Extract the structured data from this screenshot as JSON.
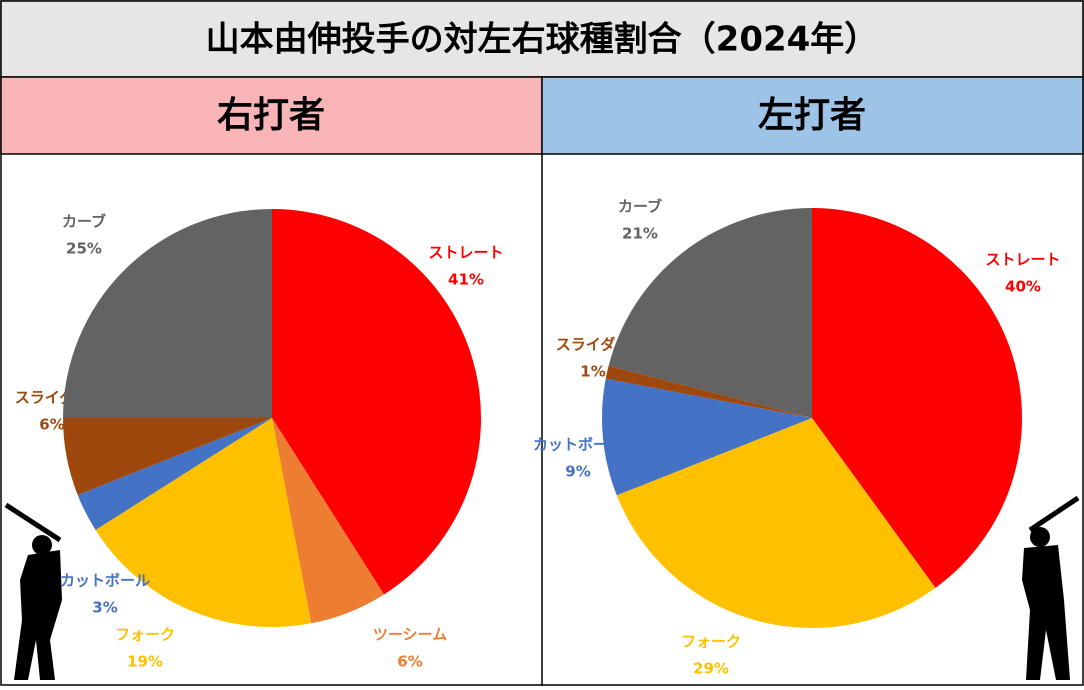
{
  "header": {
    "title": "山本由伸投手の対左右球種割合（2024年）"
  },
  "chart_data": [
    {
      "type": "pie",
      "title": "右打者",
      "categories": [
        "ストレート",
        "ツーシーム",
        "フォーク",
        "カットボール",
        "スライダー",
        "カーブ"
      ],
      "values": [
        41,
        6,
        19,
        3,
        6,
        25
      ],
      "value_labels": [
        "41%",
        "6%",
        "19%",
        "3%",
        "6%",
        "25%"
      ],
      "colors": [
        "#ff0000",
        "#ed7d31",
        "#ffc000",
        "#4472c4",
        "#9e480e",
        "#636363"
      ]
    },
    {
      "type": "pie",
      "title": "左打者",
      "categories": [
        "ストレート",
        "フォーク",
        "カットボール",
        "スライダー",
        "カーブ"
      ],
      "values": [
        40,
        29,
        9,
        1,
        21
      ],
      "value_labels": [
        "40%",
        "29%",
        "9%",
        "1%",
        "21%"
      ],
      "colors": [
        "#ff0000",
        "#ffc000",
        "#4472c4",
        "#9e480e",
        "#636363"
      ]
    }
  ]
}
